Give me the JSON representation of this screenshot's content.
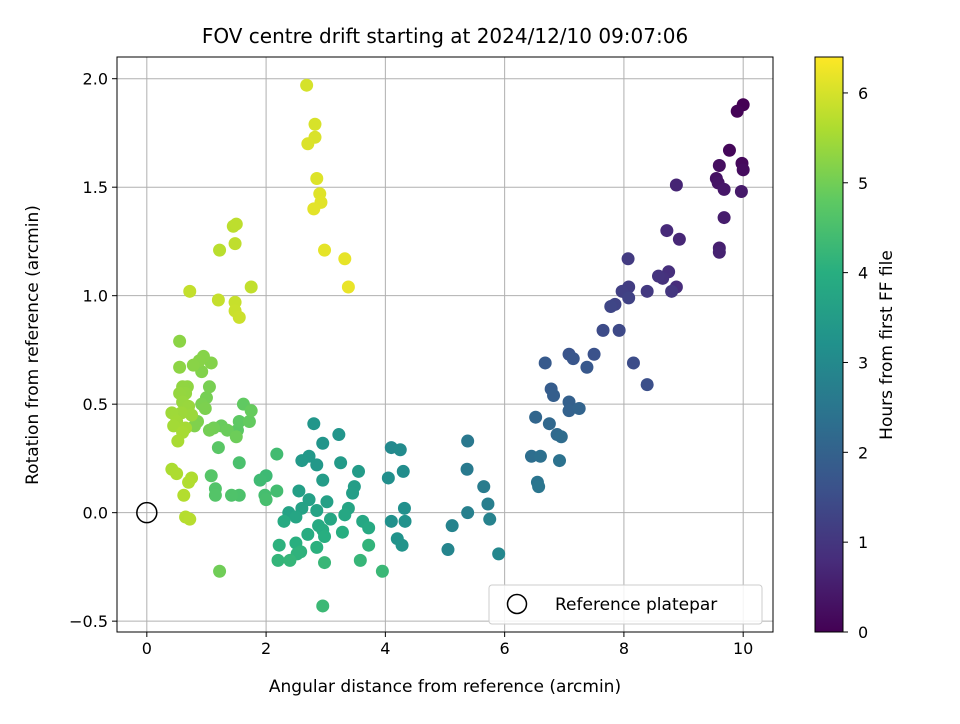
{
  "chart_data": {
    "type": "scatter",
    "title": "FOV centre drift starting at 2024/12/10 09:07:06",
    "xlabel": "Angular distance from reference (arcmin)",
    "ylabel": "Rotation from reference (arcmin)",
    "xlim": [
      -0.5,
      10.5
    ],
    "ylim": [
      -0.55,
      2.1
    ],
    "xticks": [
      0,
      2,
      4,
      6,
      8,
      10
    ],
    "xtick_labels": [
      "0",
      "2",
      "4",
      "6",
      "8",
      "10"
    ],
    "yticks": [
      -0.5,
      0.0,
      0.5,
      1.0,
      1.5,
      2.0
    ],
    "ytick_labels": [
      "−0.5",
      "0.0",
      "0.5",
      "1.0",
      "1.5",
      "2.0"
    ],
    "grid": true,
    "legend": {
      "placement": "lower-right",
      "entries": [
        "Reference platepar"
      ]
    },
    "colorbar": {
      "label": "Hours from first FF file",
      "range": [
        0,
        6.4
      ],
      "ticks": [
        0,
        1,
        2,
        3,
        4,
        5,
        6
      ],
      "tick_labels": [
        "0",
        "1",
        "2",
        "3",
        "4",
        "5",
        "6"
      ],
      "colormap": "viridis"
    },
    "reference_point": {
      "x": 0.0,
      "y": 0.0
    },
    "series": [
      {
        "name": "",
        "colorscale_key": "hours",
        "points": [
          {
            "x": 10.0,
            "y": 1.88,
            "h": 0.0
          },
          {
            "x": 9.9,
            "y": 1.85,
            "h": 0.05
          },
          {
            "x": 9.77,
            "y": 1.67,
            "h": 0.1
          },
          {
            "x": 9.98,
            "y": 1.61,
            "h": 0.15
          },
          {
            "x": 10.0,
            "y": 1.58,
            "h": 0.2
          },
          {
            "x": 9.6,
            "y": 1.6,
            "h": 0.25
          },
          {
            "x": 9.55,
            "y": 1.54,
            "h": 0.3
          },
          {
            "x": 9.58,
            "y": 1.52,
            "h": 0.35
          },
          {
            "x": 9.68,
            "y": 1.49,
            "h": 0.4
          },
          {
            "x": 9.97,
            "y": 1.48,
            "h": 0.45
          },
          {
            "x": 9.68,
            "y": 1.36,
            "h": 0.5
          },
          {
            "x": 9.6,
            "y": 1.22,
            "h": 0.55
          },
          {
            "x": 9.6,
            "y": 1.2,
            "h": 0.6
          },
          {
            "x": 8.88,
            "y": 1.51,
            "h": 0.65
          },
          {
            "x": 8.93,
            "y": 1.26,
            "h": 0.7
          },
          {
            "x": 8.72,
            "y": 1.3,
            "h": 0.75
          },
          {
            "x": 8.88,
            "y": 1.04,
            "h": 0.8
          },
          {
            "x": 8.75,
            "y": 1.11,
            "h": 0.85
          },
          {
            "x": 8.65,
            "y": 1.08,
            "h": 0.9
          },
          {
            "x": 8.58,
            "y": 1.09,
            "h": 0.95
          },
          {
            "x": 8.8,
            "y": 1.02,
            "h": 1.0
          },
          {
            "x": 8.39,
            "y": 1.02,
            "h": 1.05
          },
          {
            "x": 8.07,
            "y": 1.17,
            "h": 1.1
          },
          {
            "x": 8.08,
            "y": 1.04,
            "h": 1.15
          },
          {
            "x": 7.97,
            "y": 1.02,
            "h": 1.2
          },
          {
            "x": 8.08,
            "y": 0.99,
            "h": 1.25
          },
          {
            "x": 7.85,
            "y": 0.96,
            "h": 1.3
          },
          {
            "x": 7.78,
            "y": 0.95,
            "h": 1.35
          },
          {
            "x": 7.92,
            "y": 0.84,
            "h": 1.4
          },
          {
            "x": 7.65,
            "y": 0.84,
            "h": 1.45
          },
          {
            "x": 8.16,
            "y": 0.69,
            "h": 1.5
          },
          {
            "x": 8.39,
            "y": 0.59,
            "h": 1.55
          },
          {
            "x": 7.5,
            "y": 0.73,
            "h": 1.6
          },
          {
            "x": 7.08,
            "y": 0.73,
            "h": 1.65
          },
          {
            "x": 7.15,
            "y": 0.71,
            "h": 1.7
          },
          {
            "x": 7.38,
            "y": 0.67,
            "h": 1.75
          },
          {
            "x": 6.68,
            "y": 0.69,
            "h": 1.8
          },
          {
            "x": 6.78,
            "y": 0.57,
            "h": 1.85
          },
          {
            "x": 6.82,
            "y": 0.54,
            "h": 1.9
          },
          {
            "x": 7.08,
            "y": 0.51,
            "h": 1.95
          },
          {
            "x": 7.08,
            "y": 0.47,
            "h": 2.0
          },
          {
            "x": 7.25,
            "y": 0.48,
            "h": 2.05
          },
          {
            "x": 6.52,
            "y": 0.44,
            "h": 2.1
          },
          {
            "x": 6.75,
            "y": 0.41,
            "h": 2.15
          },
          {
            "x": 6.88,
            "y": 0.36,
            "h": 2.2
          },
          {
            "x": 6.95,
            "y": 0.35,
            "h": 2.25
          },
          {
            "x": 6.45,
            "y": 0.26,
            "h": 2.3
          },
          {
            "x": 6.6,
            "y": 0.26,
            "h": 2.35
          },
          {
            "x": 6.92,
            "y": 0.24,
            "h": 2.4
          },
          {
            "x": 6.55,
            "y": 0.14,
            "h": 2.45
          },
          {
            "x": 6.57,
            "y": 0.12,
            "h": 2.5
          },
          {
            "x": 5.38,
            "y": 0.33,
            "h": 2.55
          },
          {
            "x": 5.37,
            "y": 0.2,
            "h": 2.6
          },
          {
            "x": 5.65,
            "y": 0.12,
            "h": 2.65
          },
          {
            "x": 5.72,
            "y": 0.04,
            "h": 2.7
          },
          {
            "x": 5.38,
            "y": 0.0,
            "h": 2.75
          },
          {
            "x": 5.75,
            "y": -0.03,
            "h": 2.8
          },
          {
            "x": 5.12,
            "y": -0.06,
            "h": 2.85
          },
          {
            "x": 5.05,
            "y": -0.17,
            "h": 2.9
          },
          {
            "x": 5.9,
            "y": -0.19,
            "h": 2.95
          },
          {
            "x": 4.1,
            "y": 0.3,
            "h": 3.0
          },
          {
            "x": 4.25,
            "y": 0.29,
            "h": 3.05
          },
          {
            "x": 4.3,
            "y": 0.19,
            "h": 3.1
          },
          {
            "x": 4.05,
            "y": 0.16,
            "h": 3.15
          },
          {
            "x": 4.32,
            "y": 0.02,
            "h": 3.18
          },
          {
            "x": 4.1,
            "y": -0.04,
            "h": 3.2
          },
          {
            "x": 4.33,
            "y": -0.04,
            "h": 3.22
          },
          {
            "x": 4.2,
            "y": -0.12,
            "h": 3.25
          },
          {
            "x": 4.28,
            "y": -0.15,
            "h": 3.28
          },
          {
            "x": 3.22,
            "y": 0.36,
            "h": 3.3
          },
          {
            "x": 2.95,
            "y": 0.32,
            "h": 3.32
          },
          {
            "x": 2.8,
            "y": 0.41,
            "h": 3.35
          },
          {
            "x": 2.72,
            "y": 0.26,
            "h": 3.38
          },
          {
            "x": 2.85,
            "y": 0.22,
            "h": 3.4
          },
          {
            "x": 2.6,
            "y": 0.24,
            "h": 3.42
          },
          {
            "x": 3.25,
            "y": 0.23,
            "h": 3.45
          },
          {
            "x": 3.55,
            "y": 0.19,
            "h": 3.48
          },
          {
            "x": 2.95,
            "y": 0.15,
            "h": 3.5
          },
          {
            "x": 3.48,
            "y": 0.12,
            "h": 3.52
          },
          {
            "x": 3.45,
            "y": 0.09,
            "h": 3.55
          },
          {
            "x": 2.55,
            "y": 0.1,
            "h": 3.58
          },
          {
            "x": 2.72,
            "y": 0.06,
            "h": 3.6
          },
          {
            "x": 3.02,
            "y": 0.05,
            "h": 3.62
          },
          {
            "x": 2.6,
            "y": 0.02,
            "h": 3.65
          },
          {
            "x": 2.38,
            "y": 0.0,
            "h": 3.68
          },
          {
            "x": 2.85,
            "y": 0.01,
            "h": 3.7
          },
          {
            "x": 3.38,
            "y": 0.02,
            "h": 3.72
          },
          {
            "x": 2.5,
            "y": -0.02,
            "h": 3.75
          },
          {
            "x": 3.08,
            "y": -0.03,
            "h": 3.78
          },
          {
            "x": 3.32,
            "y": -0.01,
            "h": 3.8
          },
          {
            "x": 3.62,
            "y": -0.04,
            "h": 3.82
          },
          {
            "x": 3.72,
            "y": -0.07,
            "h": 3.85
          },
          {
            "x": 2.3,
            "y": -0.04,
            "h": 3.88
          },
          {
            "x": 2.88,
            "y": -0.06,
            "h": 3.9
          },
          {
            "x": 2.95,
            "y": -0.08,
            "h": 3.92
          },
          {
            "x": 2.7,
            "y": -0.1,
            "h": 3.95
          },
          {
            "x": 3.28,
            "y": -0.09,
            "h": 3.98
          },
          {
            "x": 2.98,
            "y": -0.11,
            "h": 4.0
          },
          {
            "x": 2.5,
            "y": -0.14,
            "h": 4.02
          },
          {
            "x": 2.85,
            "y": -0.16,
            "h": 4.05
          },
          {
            "x": 2.22,
            "y": -0.15,
            "h": 4.08
          },
          {
            "x": 2.58,
            "y": -0.18,
            "h": 4.1
          },
          {
            "x": 2.52,
            "y": -0.19,
            "h": 4.12
          },
          {
            "x": 3.72,
            "y": -0.15,
            "h": 4.15
          },
          {
            "x": 2.2,
            "y": -0.22,
            "h": 4.18
          },
          {
            "x": 2.4,
            "y": -0.22,
            "h": 4.2
          },
          {
            "x": 3.58,
            "y": -0.22,
            "h": 4.22
          },
          {
            "x": 2.98,
            "y": -0.23,
            "h": 4.25
          },
          {
            "x": 3.95,
            "y": -0.27,
            "h": 4.28
          },
          {
            "x": 2.95,
            "y": -0.43,
            "h": 4.3
          },
          {
            "x": 2.0,
            "y": 0.17,
            "h": 4.33
          },
          {
            "x": 1.9,
            "y": 0.15,
            "h": 4.36
          },
          {
            "x": 2.18,
            "y": 0.27,
            "h": 4.39
          },
          {
            "x": 2.18,
            "y": 0.1,
            "h": 4.42
          },
          {
            "x": 1.98,
            "y": 0.08,
            "h": 4.45
          },
          {
            "x": 2.0,
            "y": 0.06,
            "h": 4.48
          },
          {
            "x": 1.55,
            "y": 0.23,
            "h": 4.52
          },
          {
            "x": 1.55,
            "y": 0.08,
            "h": 4.55
          },
          {
            "x": 1.42,
            "y": 0.08,
            "h": 4.58
          },
          {
            "x": 1.15,
            "y": 0.11,
            "h": 4.62
          },
          {
            "x": 1.15,
            "y": 0.08,
            "h": 4.65
          },
          {
            "x": 1.08,
            "y": 0.17,
            "h": 4.68
          },
          {
            "x": 1.2,
            "y": 0.3,
            "h": 4.72
          },
          {
            "x": 1.52,
            "y": 0.38,
            "h": 4.75
          },
          {
            "x": 1.55,
            "y": 0.42,
            "h": 4.78
          },
          {
            "x": 1.62,
            "y": 0.5,
            "h": 4.82
          },
          {
            "x": 1.72,
            "y": 0.42,
            "h": 4.85
          },
          {
            "x": 1.75,
            "y": 0.47,
            "h": 4.88
          },
          {
            "x": 1.25,
            "y": 0.4,
            "h": 4.9
          },
          {
            "x": 1.35,
            "y": 0.38,
            "h": 4.92
          },
          {
            "x": 1.5,
            "y": 0.35,
            "h": 4.95
          },
          {
            "x": 1.22,
            "y": -0.27,
            "h": 4.98
          },
          {
            "x": 1.12,
            "y": 0.39,
            "h": 5.0
          },
          {
            "x": 1.05,
            "y": 0.38,
            "h": 5.02
          },
          {
            "x": 1.0,
            "y": 0.53,
            "h": 5.04
          },
          {
            "x": 1.05,
            "y": 0.58,
            "h": 5.06
          },
          {
            "x": 0.92,
            "y": 0.5,
            "h": 5.08
          },
          {
            "x": 0.98,
            "y": 0.48,
            "h": 5.1
          },
          {
            "x": 0.85,
            "y": 0.42,
            "h": 5.12
          },
          {
            "x": 0.8,
            "y": 0.4,
            "h": 5.14
          },
          {
            "x": 0.92,
            "y": 0.65,
            "h": 5.16
          },
          {
            "x": 1.08,
            "y": 0.69,
            "h": 5.18
          },
          {
            "x": 0.95,
            "y": 0.72,
            "h": 5.2
          },
          {
            "x": 0.88,
            "y": 0.7,
            "h": 5.22
          },
          {
            "x": 0.78,
            "y": 0.68,
            "h": 5.24
          },
          {
            "x": 0.55,
            "y": 0.79,
            "h": 5.26
          },
          {
            "x": 0.55,
            "y": 0.67,
            "h": 5.28
          },
          {
            "x": 0.68,
            "y": 0.58,
            "h": 5.3
          },
          {
            "x": 0.6,
            "y": 0.58,
            "h": 5.32
          },
          {
            "x": 0.65,
            "y": 0.55,
            "h": 5.34
          },
          {
            "x": 0.55,
            "y": 0.55,
            "h": 5.36
          },
          {
            "x": 0.6,
            "y": 0.51,
            "h": 5.38
          },
          {
            "x": 0.7,
            "y": 0.49,
            "h": 5.4
          },
          {
            "x": 0.75,
            "y": 0.45,
            "h": 5.42
          },
          {
            "x": 0.58,
            "y": 0.46,
            "h": 5.44
          },
          {
            "x": 0.42,
            "y": 0.46,
            "h": 5.46
          },
          {
            "x": 0.5,
            "y": 0.42,
            "h": 5.48
          },
          {
            "x": 0.45,
            "y": 0.4,
            "h": 5.5
          },
          {
            "x": 0.65,
            "y": 0.39,
            "h": 5.52
          },
          {
            "x": 0.6,
            "y": 0.37,
            "h": 5.54
          },
          {
            "x": 0.52,
            "y": 0.33,
            "h": 5.56
          },
          {
            "x": 0.42,
            "y": 0.2,
            "h": 5.58
          },
          {
            "x": 0.5,
            "y": 0.18,
            "h": 5.6
          },
          {
            "x": 0.75,
            "y": 0.16,
            "h": 5.62
          },
          {
            "x": 0.7,
            "y": 0.14,
            "h": 5.64
          },
          {
            "x": 0.62,
            "y": 0.08,
            "h": 5.66
          },
          {
            "x": 0.65,
            "y": -0.02,
            "h": 5.68
          },
          {
            "x": 0.72,
            "y": -0.03,
            "h": 5.7
          },
          {
            "x": 1.22,
            "y": 1.21,
            "h": 5.72
          },
          {
            "x": 1.45,
            "y": 1.32,
            "h": 5.74
          },
          {
            "x": 1.5,
            "y": 1.33,
            "h": 5.76
          },
          {
            "x": 1.48,
            "y": 1.24,
            "h": 5.78
          },
          {
            "x": 1.75,
            "y": 1.04,
            "h": 5.8
          },
          {
            "x": 0.72,
            "y": 1.02,
            "h": 5.82
          },
          {
            "x": 1.2,
            "y": 0.98,
            "h": 5.84
          },
          {
            "x": 1.48,
            "y": 0.97,
            "h": 5.86
          },
          {
            "x": 1.48,
            "y": 0.93,
            "h": 5.88
          },
          {
            "x": 1.55,
            "y": 0.9,
            "h": 5.9
          },
          {
            "x": 2.68,
            "y": 1.97,
            "h": 6.0
          },
          {
            "x": 2.82,
            "y": 1.79,
            "h": 6.02
          },
          {
            "x": 2.82,
            "y": 1.73,
            "h": 6.04
          },
          {
            "x": 2.7,
            "y": 1.7,
            "h": 6.06
          },
          {
            "x": 2.85,
            "y": 1.54,
            "h": 6.08
          },
          {
            "x": 2.9,
            "y": 1.47,
            "h": 6.1
          },
          {
            "x": 2.92,
            "y": 1.43,
            "h": 6.12
          },
          {
            "x": 2.8,
            "y": 1.4,
            "h": 6.14
          },
          {
            "x": 2.98,
            "y": 1.21,
            "h": 6.16
          },
          {
            "x": 3.32,
            "y": 1.17,
            "h": 6.18
          },
          {
            "x": 3.38,
            "y": 1.04,
            "h": 6.2
          }
        ]
      }
    ]
  }
}
